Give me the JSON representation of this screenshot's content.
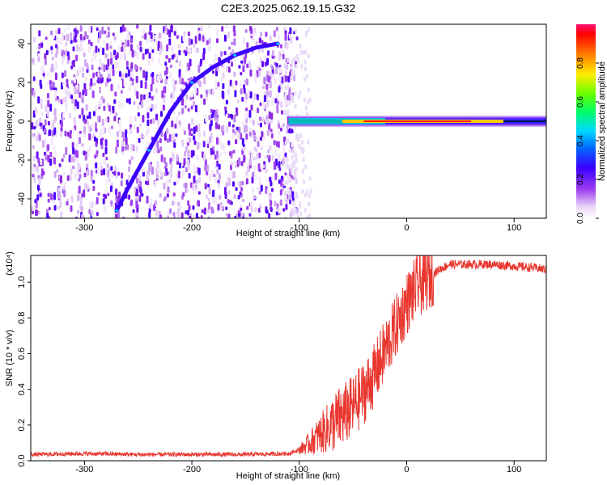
{
  "chart_data": [
    {
      "type": "heatmap",
      "title": "C2E3.2025.062.19.15.G32",
      "xlabel": "Height of straight line (km)",
      "ylabel": "Frequency (Hz)",
      "xlim": [
        -350,
        130
      ],
      "ylim": [
        -50,
        50
      ],
      "x_ticks": [
        -300,
        -200,
        -100,
        0,
        100
      ],
      "y_ticks": [
        -40,
        -20,
        0,
        20,
        40
      ],
      "colorbar": {
        "label": "Normalized spectral amplitude",
        "range": [
          0,
          1
        ],
        "ticks": [
          0.0,
          0.2,
          0.4,
          0.6,
          0.8
        ],
        "colormap": "rainbow"
      },
      "features": [
        {
          "name": "drifting tone",
          "points": [
            [
              -270,
              -46
            ],
            [
              -260,
              -35
            ],
            [
              -240,
              -15
            ],
            [
              -220,
              5
            ],
            [
              -200,
              20
            ],
            [
              -180,
              28
            ],
            [
              -160,
              34
            ],
            [
              -140,
              38
            ],
            [
              -120,
              40
            ]
          ]
        },
        {
          "name": "steady tone",
          "x_range": [
            -110,
            130
          ],
          "frequency": 0
        }
      ]
    },
    {
      "type": "line",
      "title": "",
      "xlabel": "Height of straight line (km)",
      "ylabel": "SNR (10 * v/v)",
      "y_multiplier": "(x10⁴)",
      "xlim": [
        -350,
        130
      ],
      "ylim": [
        0,
        1.15
      ],
      "x_ticks": [
        -300,
        -200,
        -100,
        0,
        100
      ],
      "y_ticks": [
        0.0,
        0.2,
        0.4,
        0.6,
        0.8,
        1.0
      ],
      "series": [
        {
          "color": "#e8372f",
          "x": [
            -350,
            -300,
            -250,
            -200,
            -150,
            -110,
            -100,
            -90,
            -80,
            -70,
            -60,
            -50,
            -40,
            -30,
            -20,
            -10,
            0,
            10,
            20,
            30,
            40,
            50,
            60,
            80,
            100,
            120,
            130
          ],
          "values": [
            0.035,
            0.04,
            0.035,
            0.035,
            0.035,
            0.04,
            0.06,
            0.1,
            0.15,
            0.2,
            0.25,
            0.3,
            0.38,
            0.48,
            0.62,
            0.75,
            0.88,
            0.98,
            1.02,
            1.07,
            1.1,
            1.1,
            1.1,
            1.1,
            1.09,
            1.08,
            1.07
          ]
        }
      ]
    }
  ]
}
